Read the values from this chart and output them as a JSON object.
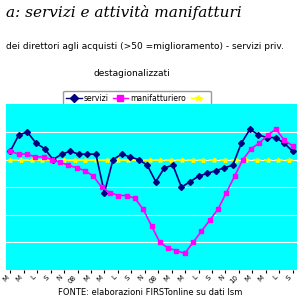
{
  "title": "a: servizi e attività manifatturi",
  "subtitle1": "dei direttori agli acquisti (>50 =miglioramento) - servizi priv.",
  "subtitle2": "destagionalizzati",
  "legend_labels": [
    "servizi",
    "manifatturiero",
    ""
  ],
  "header_color": "#FFFFFF",
  "plot_bg_color": "#00FFFF",
  "fonte": "FONTE: elaborazioni FIRSTonline su dati Ism",
  "x_labels": [
    "M",
    "M",
    "L",
    "S",
    "N",
    "08",
    "M",
    "M",
    "L",
    "S",
    "N",
    "08",
    "M",
    "M",
    "L",
    "S",
    "N",
    "10",
    "M",
    "M",
    "L",
    "S"
  ],
  "threshold": 50,
  "servizi_color": "#000080",
  "manifatturiero_color": "#FF00FF",
  "threshold_color": "#FFFF00",
  "ylim": [
    30,
    60
  ],
  "title_fontsize": 11,
  "subtitle_fontsize": 6.5,
  "label_fontsize": 6,
  "fonte_fontsize": 6
}
